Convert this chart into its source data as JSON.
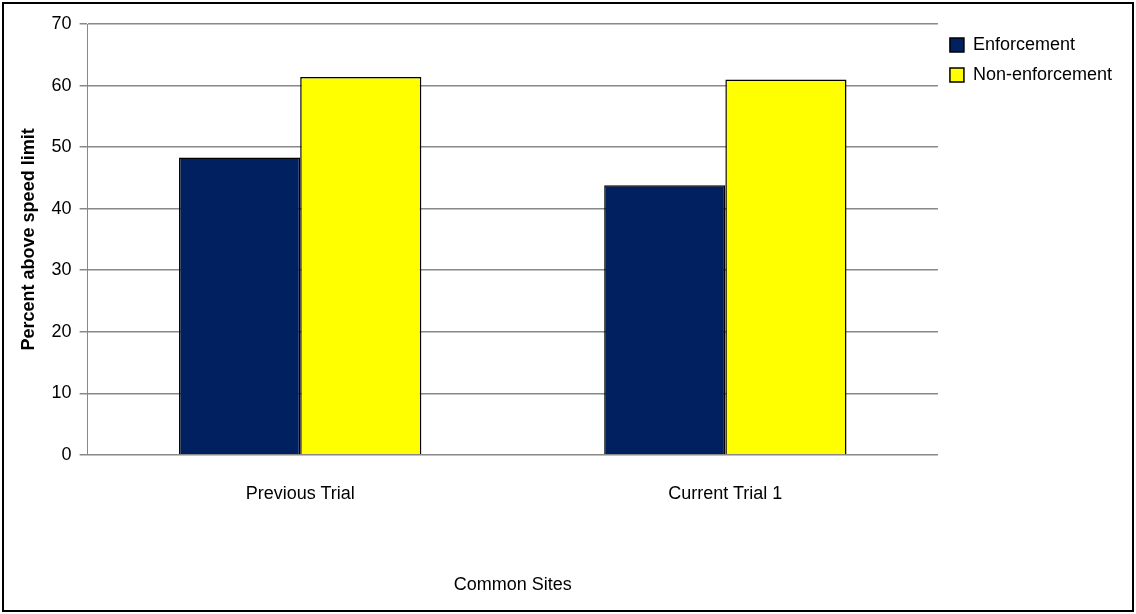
{
  "chart_data": {
    "type": "bar",
    "categories": [
      "Previous Trial",
      "Current Trial 1"
    ],
    "xlabel": "Common Sites",
    "ylabel": "Percent above speed limit",
    "series": [
      {
        "name": "Enforcement",
        "color": "#002060",
        "values": [
          48.3,
          43.8
        ]
      },
      {
        "name": "Non-enforcement",
        "color": "#ffff00",
        "values": [
          61.4,
          61.0
        ]
      }
    ],
    "ylim": [
      0,
      70
    ],
    "yticks": [
      0,
      10,
      20,
      30,
      40,
      50,
      60,
      70
    ],
    "grid": "y",
    "legend": "top right"
  }
}
